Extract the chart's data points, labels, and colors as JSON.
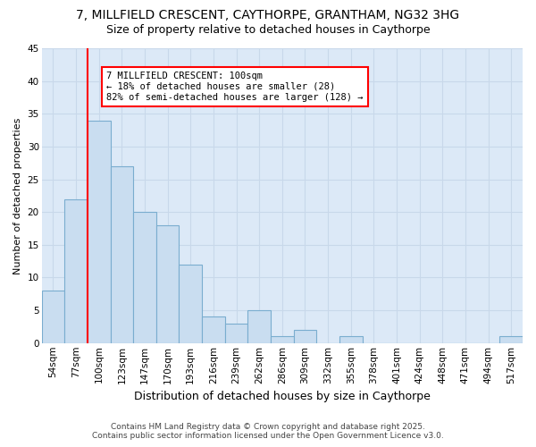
{
  "title_line1": "7, MILLFIELD CRESCENT, CAYTHORPE, GRANTHAM, NG32 3HG",
  "title_line2": "Size of property relative to detached houses in Caythorpe",
  "xlabel": "Distribution of detached houses by size in Caythorpe",
  "ylabel": "Number of detached properties",
  "categories": [
    "54sqm",
    "77sqm",
    "100sqm",
    "123sqm",
    "147sqm",
    "170sqm",
    "193sqm",
    "216sqm",
    "239sqm",
    "262sqm",
    "286sqm",
    "309sqm",
    "332sqm",
    "355sqm",
    "378sqm",
    "401sqm",
    "424sqm",
    "448sqm",
    "471sqm",
    "494sqm",
    "517sqm"
  ],
  "values": [
    8,
    22,
    34,
    27,
    20,
    18,
    12,
    4,
    3,
    5,
    1,
    2,
    0,
    1,
    0,
    0,
    0,
    0,
    0,
    0,
    1
  ],
  "bar_color": "#c9ddf0",
  "bar_edge_color": "#7aadcf",
  "grid_color": "#c8d8ea",
  "background_color": "#dce9f7",
  "redline_index": 2,
  "ylim": [
    0,
    45
  ],
  "yticks": [
    0,
    5,
    10,
    15,
    20,
    25,
    30,
    35,
    40,
    45
  ],
  "annotation_title": "7 MILLFIELD CRESCENT: 100sqm",
  "annotation_line1": "← 18% of detached houses are smaller (28)",
  "annotation_line2": "82% of semi-detached houses are larger (128) →",
  "footer_line1": "Contains HM Land Registry data © Crown copyright and database right 2025.",
  "footer_line2": "Contains public sector information licensed under the Open Government Licence v3.0.",
  "title_fontsize": 10,
  "subtitle_fontsize": 9,
  "xlabel_fontsize": 9,
  "ylabel_fontsize": 8,
  "tick_fontsize": 7.5,
  "annotation_fontsize": 7.5,
  "footer_fontsize": 6.5
}
